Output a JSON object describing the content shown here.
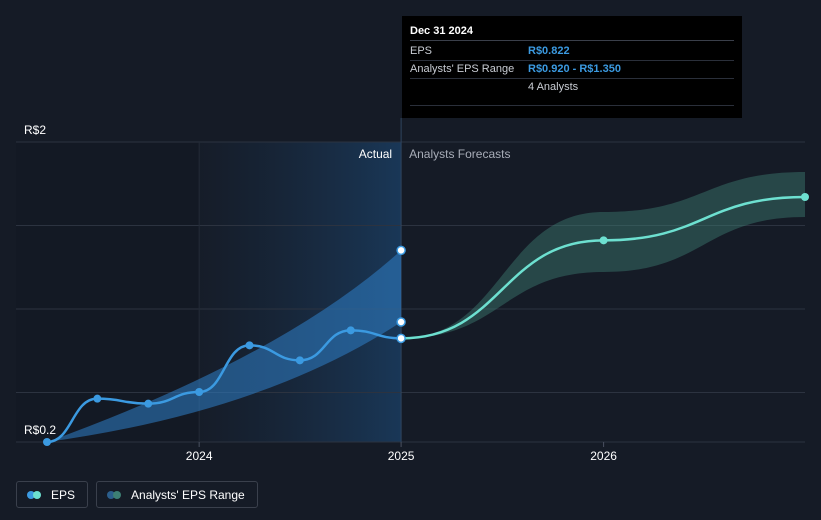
{
  "chart_data": {
    "type": "line",
    "title": "",
    "x": [
      "2023-04-01",
      "2023-07-01",
      "2023-10-01",
      "2024-01-01",
      "2024-04-01",
      "2024-07-01",
      "2024-10-01",
      "2024-12-31",
      "2026-01-01",
      "2026-12-31"
    ],
    "series": [
      {
        "name": "EPS",
        "kind": "actual",
        "color": "#3b9ae1",
        "points": [
          {
            "x": "2023-04-01",
            "y": 0.2
          },
          {
            "x": "2023-07-01",
            "y": 0.46
          },
          {
            "x": "2023-10-01",
            "y": 0.43
          },
          {
            "x": "2024-01-01",
            "y": 0.5
          },
          {
            "x": "2024-04-01",
            "y": 0.78
          },
          {
            "x": "2024-07-01",
            "y": 0.69
          },
          {
            "x": "2024-10-01",
            "y": 0.87
          },
          {
            "x": "2024-12-31",
            "y": 0.822
          }
        ]
      },
      {
        "name": "EPS",
        "kind": "forecast",
        "color": "#6de0d0",
        "points": [
          {
            "x": "2024-12-31",
            "y": 0.822
          },
          {
            "x": "2026-01-01",
            "y": 1.41
          },
          {
            "x": "2026-12-31",
            "y": 1.67
          }
        ]
      },
      {
        "name": "Analysts' EPS Range",
        "kind": "range-past",
        "color": "#2f7fc9",
        "points": [
          {
            "x": "2023-04-01",
            "low": 0.2,
            "high": 0.2
          },
          {
            "x": "2024-12-31",
            "low": 0.92,
            "high": 1.35
          }
        ]
      },
      {
        "name": "Analysts' EPS Range",
        "kind": "range-forecast",
        "color": "#3d7f74",
        "points": [
          {
            "x": "2024-12-31",
            "low": 0.822,
            "high": 0.822
          },
          {
            "x": "2026-01-01",
            "low": 1.22,
            "high": 1.58
          },
          {
            "x": "2026-12-31",
            "low": 1.55,
            "high": 1.82
          }
        ]
      }
    ],
    "ylim": [
      0.2,
      2
    ],
    "xlim": [
      "2023-04-01",
      "2026-12-31"
    ],
    "xticks": [
      "2024",
      "2025",
      "2026"
    ],
    "yticks": [
      "R$0.2",
      "R$2"
    ],
    "highlight_point": {
      "x": "2024-12-31",
      "y": 0.822
    },
    "zones": {
      "actual_label": "Actual",
      "forecast_label": "Analysts Forecasts",
      "divider": "2024-12-31"
    },
    "grid": true,
    "legend_position": "bottom-left"
  },
  "tooltip": {
    "date": "Dec 31 2024",
    "rows": [
      {
        "key": "EPS",
        "value": "R$0.822"
      },
      {
        "key": "Analysts' EPS Range",
        "value": "R$0.920 - R$1.350"
      },
      {
        "key": "",
        "value": "4 Analysts"
      }
    ]
  },
  "legend": {
    "items": [
      {
        "label": "EPS",
        "color_a": "#3b9ae1",
        "color_b": "#6de0d0"
      },
      {
        "label": "Analysts' EPS Range",
        "color_a": "#2b5e8c",
        "color_b": "#3d7f74"
      }
    ]
  }
}
